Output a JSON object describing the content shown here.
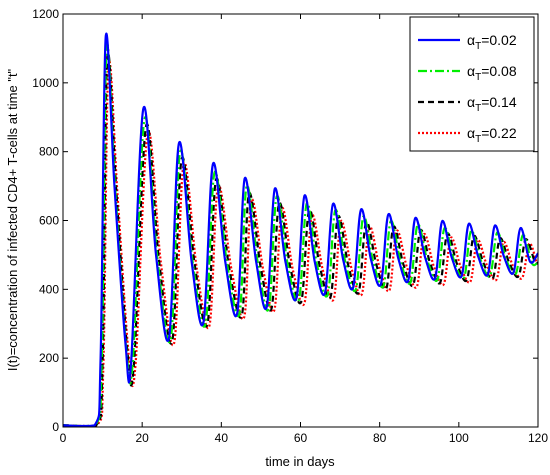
{
  "chart_data": {
    "type": "line",
    "title": "",
    "xlabel": "time in days",
    "ylabel": "I(t)=concentration of infected CD4+ T-cells at time \"t\"",
    "xlim": [
      0,
      120
    ],
    "ylim": [
      0,
      1200
    ],
    "xticks": [
      0,
      20,
      40,
      60,
      80,
      100,
      120
    ],
    "yticks": [
      0,
      200,
      400,
      600,
      800,
      1000,
      1200
    ],
    "grid": false,
    "legend_position": "top-right",
    "series": [
      {
        "name": "αT=0.02",
        "name_main": "α",
        "name_sub": "T",
        "name_tail": "=0.02",
        "color": "#0000ff",
        "dash": "solid",
        "x": [
          0,
          8,
          9.5,
          10.8,
          13,
          15.8,
          17.2,
          20.3,
          23.5,
          26.8,
          29.3,
          32.5,
          35.5,
          37.9,
          41,
          44,
          45.9,
          48.8,
          51.5,
          53.5,
          56.2,
          59,
          61,
          63.6,
          66.2,
          68.2,
          70.8,
          73.3,
          75.3,
          77.8,
          80.3,
          82.2,
          84.7,
          87.2,
          89,
          91.5,
          94,
          95.8,
          98.2,
          100.7,
          102.5,
          104.9,
          107.3,
          109.1,
          111.4,
          113.8,
          115.6,
          118,
          120
        ],
        "y": [
          5,
          5,
          200,
          1135,
          700,
          240,
          185,
          925,
          500,
          260,
          825,
          480,
          305,
          765,
          480,
          330,
          722,
          480,
          350,
          692,
          480,
          375,
          672,
          480,
          390,
          648,
          485,
          405,
          632,
          487,
          415,
          618,
          490,
          425,
          607,
          492,
          432,
          598,
          493,
          438,
          590,
          495,
          443,
          585,
          495,
          448,
          578,
          480,
          505
        ]
      },
      {
        "name": "αT=0.08",
        "name_main": "α",
        "name_sub": "T",
        "name_tail": "=0.08",
        "color": "#00ee00",
        "dash": "dashdot",
        "x": [
          0,
          8.2,
          9.8,
          11,
          13.2,
          16,
          17.6,
          20.6,
          23.8,
          27.2,
          29.6,
          32.8,
          36,
          38.3,
          41.5,
          44.6,
          46.4,
          49.3,
          52,
          54,
          56.8,
          59.6,
          61.6,
          64.2,
          66.9,
          68.8,
          71.4,
          74,
          75.9,
          78.4,
          81,
          82.8,
          85.3,
          87.8,
          89.6,
          92.1,
          94.6,
          96.4,
          98.8,
          101.3,
          103.1,
          105.5,
          107.9,
          109.7,
          112,
          114.4,
          116.2,
          118.5,
          120
        ],
        "y": [
          5,
          5,
          200,
          1100,
          690,
          225,
          185,
          895,
          495,
          255,
          800,
          475,
          300,
          740,
          470,
          330,
          700,
          470,
          345,
          670,
          470,
          370,
          650,
          470,
          385,
          630,
          475,
          400,
          612,
          478,
          410,
          598,
          480,
          420,
          588,
          482,
          428,
          578,
          483,
          433,
          570,
          485,
          440,
          565,
          485,
          445,
          558,
          475,
          480
        ]
      },
      {
        "name": "αT=0.14",
        "name_main": "α",
        "name_sub": "T",
        "name_tail": "=0.14",
        "color": "#000000",
        "dash": "dashed",
        "x": [
          0,
          8.4,
          10,
          11.2,
          13.5,
          16.3,
          17.9,
          21,
          24.2,
          27.6,
          30,
          33.3,
          36.5,
          38.7,
          42,
          45.2,
          47,
          50,
          52.7,
          54.6,
          57.4,
          60.2,
          62.2,
          64.9,
          67.6,
          69.5,
          72.1,
          74.7,
          76.6,
          79.2,
          81.7,
          83.5,
          86,
          88.5,
          90.3,
          92.8,
          95.3,
          97.1,
          99.5,
          102,
          103.8,
          106.2,
          108.6,
          110.4,
          112.7,
          115.1,
          116.9,
          119.2,
          120
        ],
        "y": [
          5,
          5,
          190,
          1075,
          680,
          215,
          180,
          875,
          490,
          250,
          780,
          470,
          300,
          720,
          460,
          325,
          678,
          460,
          345,
          650,
          465,
          365,
          630,
          465,
          378,
          612,
          468,
          392,
          595,
          470,
          403,
          582,
          472,
          413,
          572,
          474,
          420,
          562,
          475,
          427,
          555,
          477,
          432,
          548,
          478,
          438,
          545,
          480,
          478
        ]
      },
      {
        "name": "αT=0.22",
        "name_main": "α",
        "name_sub": "T",
        "name_tail": "=0.22",
        "color": "#ff0000",
        "dash": "dotted",
        "x": [
          0,
          8.6,
          10.2,
          11.5,
          13.8,
          16.6,
          18.3,
          21.4,
          24.7,
          28.1,
          30.5,
          33.8,
          37,
          39.2,
          42.6,
          45.8,
          47.6,
          50.6,
          53.4,
          55.3,
          58.1,
          61,
          62.9,
          65.6,
          68.4,
          70.2,
          72.9,
          75.5,
          77.4,
          80,
          82.5,
          84.3,
          86.9,
          89.4,
          91.2,
          93.7,
          96.2,
          98,
          100.4,
          102.9,
          104.7,
          107.1,
          109.5,
          111.3,
          113.6,
          116,
          117.8,
          119.6,
          120
        ],
        "y": [
          5,
          5,
          180,
          1050,
          670,
          210,
          178,
          855,
          480,
          245,
          765,
          460,
          295,
          700,
          455,
          320,
          660,
          455,
          340,
          635,
          455,
          360,
          615,
          458,
          372,
          598,
          460,
          386,
          582,
          462,
          398,
          570,
          464,
          408,
          560,
          466,
          415,
          550,
          468,
          422,
          543,
          470,
          428,
          537,
          470,
          433,
          533,
          480,
          476
        ]
      }
    ]
  }
}
